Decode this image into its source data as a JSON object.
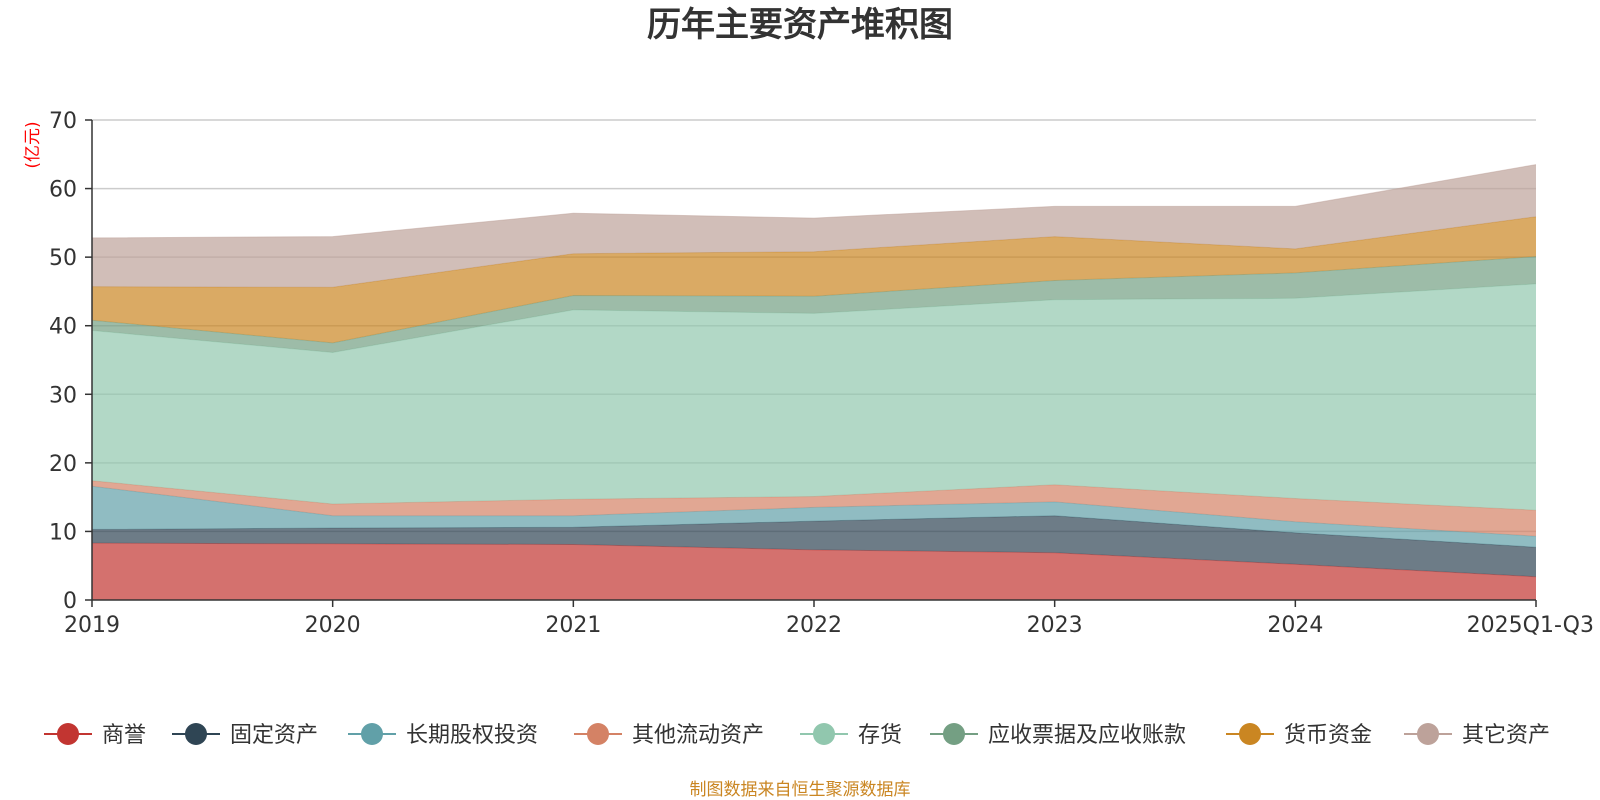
{
  "chart_data": {
    "type": "area",
    "stacked": true,
    "title": "历年主要资产堆积图",
    "ylabel": "(亿元)",
    "xlabel": "",
    "ylim": [
      0,
      70
    ],
    "yticks": [
      0,
      10,
      20,
      30,
      40,
      50,
      60,
      70
    ],
    "categories": [
      "2019",
      "2020",
      "2021",
      "2022",
      "2023",
      "2024",
      "2025Q1-Q3"
    ],
    "grid": true,
    "legend_position": "bottom",
    "series": [
      {
        "name": "商誉",
        "color": "#c23531",
        "values": [
          8.3,
          8.2,
          8.1,
          7.3,
          6.9,
          5.2,
          3.4
        ]
      },
      {
        "name": "固定资产",
        "color": "#2f4554",
        "values": [
          2.0,
          2.3,
          2.5,
          4.2,
          5.4,
          4.6,
          4.3
        ]
      },
      {
        "name": "长期股权投资",
        "color": "#61a0a8",
        "values": [
          6.3,
          1.8,
          1.7,
          2.0,
          2.0,
          1.6,
          1.6
        ]
      },
      {
        "name": "其他流动资产",
        "color": "#d48265",
        "values": [
          0.8,
          1.7,
          2.4,
          1.6,
          2.5,
          3.4,
          3.8
        ]
      },
      {
        "name": "存货",
        "color": "#91c7ae",
        "values": [
          21.9,
          22.1,
          27.6,
          26.7,
          27.0,
          29.2,
          33.0
        ]
      },
      {
        "name": "应收票据及应收账款",
        "color": "#749f83",
        "values": [
          1.5,
          1.4,
          2.1,
          2.5,
          2.8,
          3.7,
          4.0
        ]
      },
      {
        "name": "货币资金",
        "color": "#ca8622",
        "values": [
          4.9,
          8.1,
          6.1,
          6.5,
          6.4,
          3.5,
          5.8
        ]
      },
      {
        "name": "其它资产",
        "color": "#bda29a",
        "values": [
          7.1,
          7.4,
          5.9,
          4.9,
          4.4,
          6.2,
          7.6
        ]
      }
    ]
  },
  "source_note": "制图数据来自恒生聚源数据库",
  "colors": {
    "ylabel": "#ff0000",
    "source": "#ca8622",
    "axis": "#333333",
    "grid": "#cccccc"
  }
}
